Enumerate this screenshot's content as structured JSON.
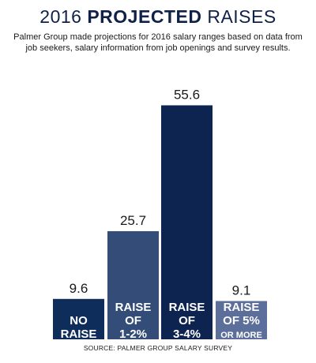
{
  "header": {
    "title_year": "2016",
    "title_bold": "PROJECTED",
    "title_tail": "RAISES",
    "subtitle": "Palmer Group made projections for 2016 salary ranges based on data from job seekers, salary information from job openings and survey results."
  },
  "footer": {
    "source": "SOURCE: PALMER GROUP SALARY  SURVEY"
  },
  "colors": {
    "title": "#0f2147",
    "label_text": "#ffffff",
    "value_text": "#1a1a1a"
  },
  "chart_data": {
    "type": "bar",
    "categories": [
      [
        "NO",
        "RAISE"
      ],
      [
        "RAISE",
        "OF",
        "1-2%"
      ],
      [
        "RAISE",
        "OF",
        "3-4%"
      ],
      [
        "RAISE",
        "OF 5%",
        "OR MORE"
      ]
    ],
    "values": [
      9.6,
      25.7,
      55.6,
      9.1
    ],
    "value_labels": [
      "9.6",
      "25.7",
      "55.6",
      "9.1"
    ],
    "bar_colors": [
      "#0f2d5a",
      "#334d78",
      "#0d2350",
      "#5c6e9a"
    ],
    "ylim": [
      0,
      60
    ],
    "grid": false,
    "legend": "none"
  }
}
